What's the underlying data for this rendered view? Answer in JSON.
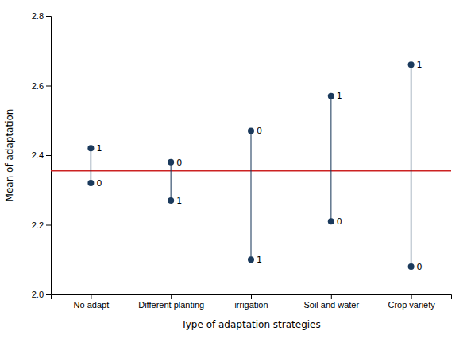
{
  "chart_data": {
    "type": "dumbbell",
    "xlabel": "Type of adaptation strategies",
    "ylabel": "Mean of adaptation",
    "categories": [
      "No adapt",
      "Different planting",
      "irrigation",
      "Soil and water",
      "Crop variety"
    ],
    "series": [
      {
        "values": [
          2.32,
          2.27,
          2.1,
          2.21,
          2.08
        ],
        "labels": [
          "0",
          "1",
          "1",
          "0",
          "0"
        ]
      },
      {
        "values": [
          2.42,
          2.38,
          2.47,
          2.57,
          2.66
        ],
        "labels": [
          "1",
          "0",
          "0",
          "1",
          "1"
        ]
      }
    ],
    "color": "#1b3a5c",
    "hline": {
      "value": 2.355,
      "color": "#cc2222"
    },
    "ylim": [
      2.0,
      2.8
    ],
    "yticks": [
      {
        "value": 2.0,
        "label": "2.0"
      },
      2.2,
      2.4,
      2.6,
      2.8
    ],
    "grid": false
  }
}
